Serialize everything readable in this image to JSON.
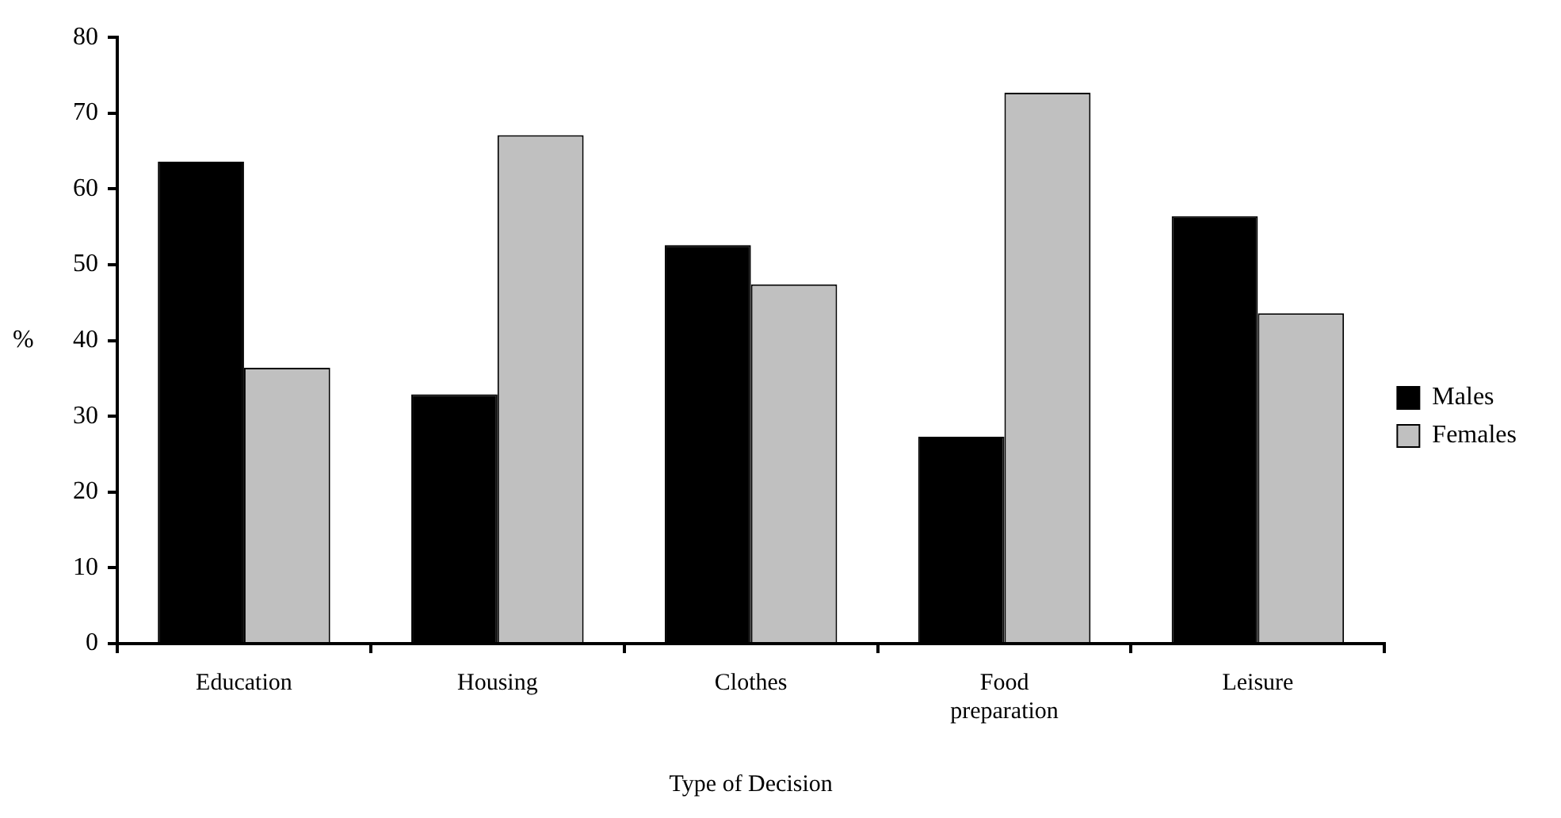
{
  "chart_data": {
    "type": "bar",
    "xlabel": "Type of Decision",
    "ylabel": "%",
    "categories": [
      "Education",
      "Housing",
      "Clothes",
      "Food preparation",
      "Leisure"
    ],
    "series": [
      {
        "name": "Males",
        "color": "#000000",
        "values": [
          63.6,
          32.9,
          52.6,
          27.3,
          56.4
        ]
      },
      {
        "name": "Females",
        "color": "#c0c0c0",
        "values": [
          36.4,
          67.1,
          47.4,
          72.7,
          43.6
        ]
      }
    ],
    "ylim": [
      0,
      80
    ],
    "yticks": [
      0,
      10,
      20,
      30,
      40,
      50,
      60,
      70,
      80
    ],
    "grid": false,
    "legend": "right"
  }
}
